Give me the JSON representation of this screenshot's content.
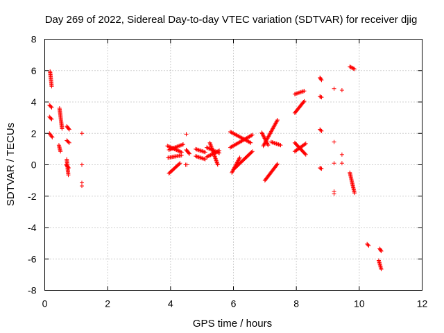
{
  "chart_data": {
    "type": "scatter",
    "title": "Day 269 of 2022, Sidereal Day-to-day VTEC variation (SDTVAR) for receiver djig",
    "xlabel": "GPS time / hours",
    "ylabel": "SDTVAR / TECUs",
    "xlim": [
      0,
      12
    ],
    "ylim": [
      -8,
      8
    ],
    "xticks": [
      0,
      2,
      4,
      6,
      8,
      10,
      12
    ],
    "yticks": [
      -8,
      -6,
      -4,
      -2,
      0,
      2,
      4,
      6,
      8
    ],
    "xtick_labels": [
      "0",
      "2",
      "4",
      "6",
      "8",
      "10",
      "12"
    ],
    "ytick_labels": [
      "-8",
      "-6",
      "-4",
      "-2",
      "0",
      "2",
      "4",
      "6",
      "8"
    ],
    "grid": true,
    "marker": "+",
    "color": "#ff0000",
    "series": [
      {
        "name": "SDTVAR",
        "segments": [
          [
            [
              0.17,
              5.95
            ],
            [
              0.22,
              5.0
            ]
          ],
          [
            [
              0.15,
              3.8
            ],
            [
              0.22,
              3.65
            ]
          ],
          [
            [
              0.15,
              3.05
            ],
            [
              0.22,
              2.9
            ]
          ],
          [
            [
              0.15,
              2.0
            ],
            [
              0.24,
              1.75
            ]
          ],
          [
            [
              0.47,
              3.6
            ],
            [
              0.55,
              2.3
            ]
          ],
          [
            [
              0.45,
              1.25
            ],
            [
              0.5,
              0.85
            ]
          ],
          [
            [
              0.7,
              2.45
            ],
            [
              0.78,
              2.25
            ]
          ],
          [
            [
              0.7,
              1.55
            ],
            [
              0.78,
              1.4
            ]
          ],
          [
            [
              0.7,
              0.35
            ],
            [
              0.75,
              -0.65
            ]
          ],
          [
            [
              0.68,
              0.0
            ],
            [
              0.76,
              -0.2
            ]
          ],
          [
            [
              3.9,
              1.2
            ],
            [
              4.35,
              0.8
            ]
          ],
          [
            [
              3.95,
              0.95
            ],
            [
              4.4,
              1.3
            ]
          ],
          [
            [
              3.92,
              0.45
            ],
            [
              4.35,
              0.6
            ]
          ],
          [
            [
              3.95,
              -0.55
            ],
            [
              4.3,
              0.1
            ]
          ],
          [
            [
              4.5,
              0.95
            ],
            [
              4.6,
              0.7
            ]
          ],
          [
            [
              4.48,
              0.0
            ],
            [
              4.52,
              0.0
            ]
          ],
          [
            [
              4.8,
              1.0
            ],
            [
              5.1,
              0.8
            ]
          ],
          [
            [
              4.8,
              0.55
            ],
            [
              5.1,
              0.35
            ]
          ],
          [
            [
              5.15,
              1.1
            ],
            [
              5.55,
              0.75
            ]
          ],
          [
            [
              5.15,
              0.5
            ],
            [
              5.55,
              0.9
            ]
          ],
          [
            [
              5.25,
              1.4
            ],
            [
              5.5,
              0.0
            ]
          ],
          [
            [
              5.9,
              2.1
            ],
            [
              6.55,
              1.4
            ]
          ],
          [
            [
              5.9,
              1.1
            ],
            [
              6.6,
              1.9
            ]
          ],
          [
            [
              5.95,
              -0.5
            ],
            [
              6.2,
              0.45
            ]
          ],
          [
            [
              6.0,
              -0.3
            ],
            [
              6.6,
              0.85
            ]
          ],
          [
            [
              6.9,
              2.05
            ],
            [
              7.1,
              1.25
            ]
          ],
          [
            [
              6.95,
              1.2
            ],
            [
              7.4,
              2.85
            ]
          ],
          [
            [
              7.2,
              1.45
            ],
            [
              7.5,
              1.25
            ]
          ],
          [
            [
              7.0,
              -1.0
            ],
            [
              7.4,
              0.05
            ]
          ],
          [
            [
              7.95,
              4.5
            ],
            [
              8.25,
              4.7
            ]
          ],
          [
            [
              7.95,
              3.3
            ],
            [
              8.25,
              4.05
            ]
          ],
          [
            [
              7.95,
              1.4
            ],
            [
              8.3,
              0.65
            ]
          ],
          [
            [
              7.95,
              0.85
            ],
            [
              8.3,
              1.35
            ]
          ],
          [
            [
              8.75,
              5.55
            ],
            [
              8.8,
              5.4
            ]
          ],
          [
            [
              8.75,
              4.35
            ],
            [
              8.8,
              4.3
            ]
          ],
          [
            [
              8.75,
              2.25
            ],
            [
              8.8,
              2.15
            ]
          ],
          [
            [
              8.75,
              -0.2
            ],
            [
              8.8,
              -0.25
            ]
          ],
          [
            [
              9.7,
              6.25
            ],
            [
              9.85,
              6.1
            ]
          ],
          [
            [
              9.7,
              -0.5
            ],
            [
              9.85,
              -1.8
            ]
          ],
          [
            [
              10.25,
              -5.05
            ],
            [
              10.3,
              -5.15
            ]
          ],
          [
            [
              10.65,
              -5.35
            ],
            [
              10.7,
              -5.5
            ]
          ],
          [
            [
              10.62,
              -6.1
            ],
            [
              10.7,
              -6.65
            ]
          ]
        ],
        "points": [
          [
            1.18,
            2.0
          ],
          [
            1.18,
            0.0
          ],
          [
            1.18,
            -1.15
          ],
          [
            1.18,
            -1.35
          ],
          [
            4.5,
            1.95
          ],
          [
            9.2,
            4.85
          ],
          [
            9.45,
            4.75
          ],
          [
            9.2,
            1.45
          ],
          [
            9.2,
            0.1
          ],
          [
            9.45,
            0.65
          ],
          [
            9.45,
            0.1
          ],
          [
            9.2,
            -1.7
          ],
          [
            9.2,
            -1.85
          ]
        ]
      }
    ]
  }
}
